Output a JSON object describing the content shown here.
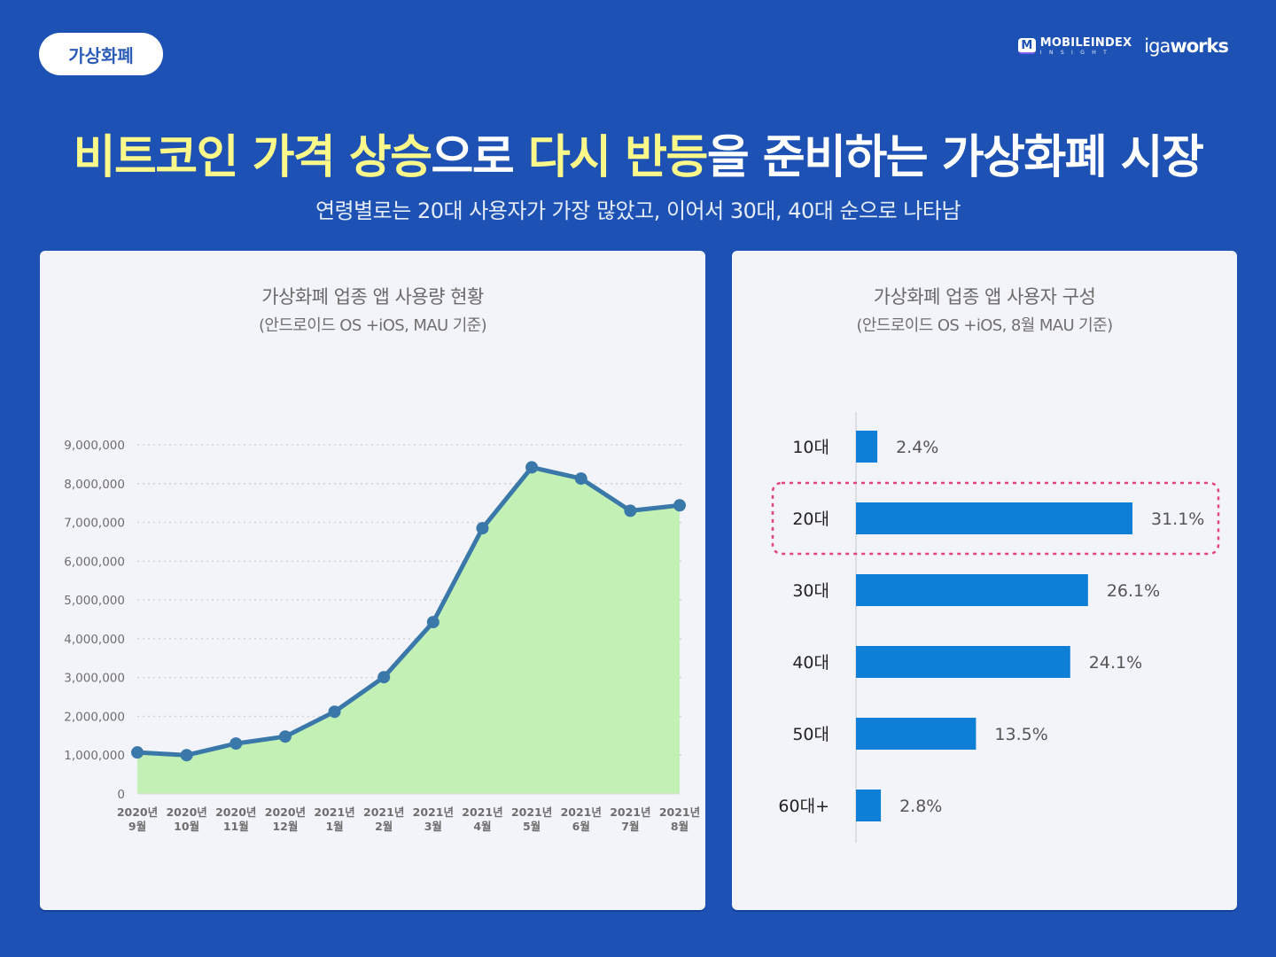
{
  "header": {
    "category_tag": "가상화폐",
    "logos": {
      "mobileindex_mark": "M",
      "mobileindex_name": "MOBILEINDEX",
      "mobileindex_sub": "INSIGHT",
      "igaworks_light": "iga",
      "igaworks_bold": "works"
    },
    "headline_parts": [
      {
        "text": "비트코인 가격 상승",
        "highlight": true
      },
      {
        "text": "으로 ",
        "highlight": false
      },
      {
        "text": "다시 반등",
        "highlight": true
      },
      {
        "text": "을 준비하는 가상화폐 시장",
        "highlight": false
      }
    ],
    "subheadline": "연령별로는 20대 사용자가 가장 많았고, 이어서 30대, 40대 순으로 나타남"
  },
  "colors": {
    "background": "#1d52b4",
    "headline_highlight": "#fbf98a",
    "line": "#3a78aa",
    "area_fill": "#c3f0b4",
    "bar": "#0d7fd6",
    "highlight_box": "#e5437c"
  },
  "chart_data": [
    {
      "type": "area",
      "title": "가상화폐 업종 앱 사용량 현황",
      "subtitle": "(안드로이드 OS +iOS,  MAU 기준)",
      "xlabel": "",
      "ylabel": "",
      "categories": [
        [
          "2020년",
          "9월"
        ],
        [
          "2020년",
          "10월"
        ],
        [
          "2020년",
          "11월"
        ],
        [
          "2020년",
          "12월"
        ],
        [
          "2021년",
          "1월"
        ],
        [
          "2021년",
          "2월"
        ],
        [
          "2021년",
          "3월"
        ],
        [
          "2021년",
          "4월"
        ],
        [
          "2021년",
          "5월"
        ],
        [
          "2021년",
          "6월"
        ],
        [
          "2021년",
          "7월"
        ],
        [
          "2021년",
          "8월"
        ]
      ],
      "values": [
        1070000,
        1000000,
        1300000,
        1480000,
        2120000,
        3010000,
        4430000,
        6850000,
        8420000,
        8130000,
        7300000,
        7440000
      ],
      "ylim": [
        0,
        9000000
      ],
      "yticks": [
        0,
        1000000,
        2000000,
        3000000,
        4000000,
        5000000,
        6000000,
        7000000,
        8000000,
        9000000
      ],
      "ytick_labels": [
        "0",
        "1,000,000",
        "2,000,000",
        "3,000,000",
        "4,000,000",
        "5,000,000",
        "6,000,000",
        "7,000,000",
        "8,000,000",
        "9,000,000"
      ],
      "grid": true,
      "legend": "none"
    },
    {
      "type": "bar",
      "orientation": "horizontal",
      "title": "가상화폐 업종 앱 사용자 구성",
      "subtitle": "(안드로이드 OS +iOS,  8월 MAU 기준)",
      "categories": [
        "10대",
        "20대",
        "30대",
        "40대",
        "50대",
        "60대+"
      ],
      "values": [
        2.4,
        31.1,
        26.1,
        24.1,
        13.5,
        2.8
      ],
      "value_labels": [
        "2.4%",
        "31.1%",
        "26.1%",
        "24.1%",
        "13.5%",
        "2.8%"
      ],
      "unit": "%",
      "highlighted_category": "20대",
      "xlim": [
        0,
        31.1
      ],
      "grid": false,
      "legend": "none"
    }
  ]
}
